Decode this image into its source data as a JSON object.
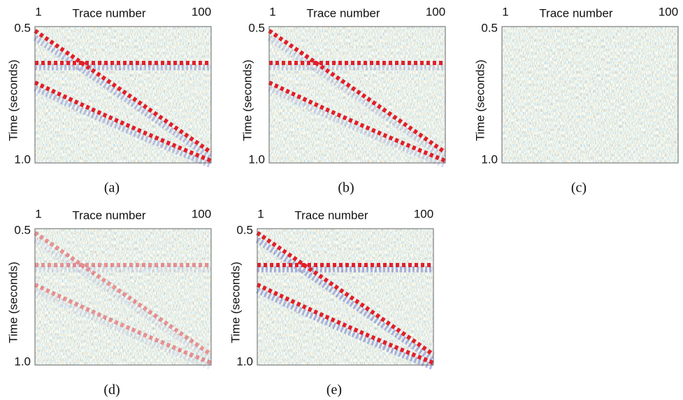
{
  "panels": [
    {
      "caption": "(a)",
      "x_axis": {
        "label": "Trace number",
        "ticks": [
          "1",
          "100"
        ]
      },
      "y_axis": {
        "label": "Time (seconds)",
        "ticks": [
          "0.5",
          "1.0"
        ]
      }
    },
    {
      "caption": "(b)",
      "x_axis": {
        "label": "Trace number",
        "ticks": [
          "1",
          "100"
        ]
      },
      "y_axis": {
        "label": "Time (seconds)",
        "ticks": [
          "0.5",
          "1.0"
        ]
      }
    },
    {
      "caption": "(c)",
      "x_axis": {
        "label": "Trace number",
        "ticks": [
          "1",
          "100"
        ]
      },
      "y_axis": {
        "label": "Time (seconds)",
        "ticks": [
          "0.5",
          "1.0"
        ]
      }
    },
    {
      "caption": "(d)",
      "x_axis": {
        "label": "Trace number",
        "ticks": [
          "1",
          "100"
        ]
      },
      "y_axis": {
        "label": "Time (seconds)",
        "ticks": [
          "0.5",
          "1.0"
        ]
      }
    },
    {
      "caption": "(e)",
      "x_axis": {
        "label": "Trace number",
        "ticks": [
          "1",
          "100"
        ]
      },
      "y_axis": {
        "label": "Time (seconds)",
        "ticks": [
          "0.5",
          "1.0"
        ]
      }
    }
  ]
}
